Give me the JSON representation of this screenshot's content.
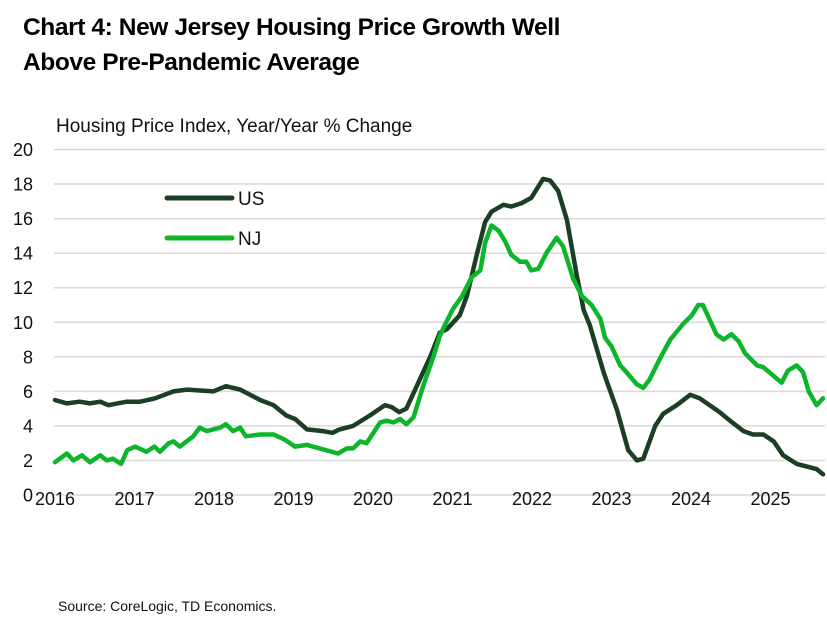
{
  "chart_data": {
    "type": "line",
    "title": [
      "Chart 4: New Jersey Housing Price Growth Well",
      "Above Pre-Pandemic Average"
    ],
    "subtitle": "Housing Price Index, Year/Year % Change",
    "source": "Source: CoreLogic, TD Economics.",
    "xlabel": "",
    "ylabel": "",
    "xlim": [
      2016,
      2025.7
    ],
    "ylim": [
      0,
      20
    ],
    "x_ticks": [
      2016,
      2017,
      2018,
      2019,
      2020,
      2021,
      2022,
      2023,
      2024,
      2025
    ],
    "x_tick_labels": [
      "2016",
      "2017",
      "2018",
      "2019",
      "2020",
      "2021",
      "2022",
      "2023",
      "2024",
      "2025"
    ],
    "y_ticks": [
      0,
      2,
      4,
      6,
      8,
      10,
      12,
      14,
      16,
      18,
      20
    ],
    "y_tick_labels": [
      "0",
      "2",
      "4",
      "6",
      "8",
      "10",
      "12",
      "14",
      "16",
      "18",
      "20"
    ],
    "grid": "horizontal",
    "legend_position": "top-left",
    "series": [
      {
        "name": "US",
        "color": "#1a3f24",
        "points": [
          [
            2016.0,
            5.5
          ],
          [
            2016.15,
            5.3
          ],
          [
            2016.31,
            5.4
          ],
          [
            2016.44,
            5.3
          ],
          [
            2016.57,
            5.4
          ],
          [
            2016.67,
            5.2
          ],
          [
            2016.9,
            5.4
          ],
          [
            2017.07,
            5.4
          ],
          [
            2017.26,
            5.6
          ],
          [
            2017.49,
            6.0
          ],
          [
            2017.66,
            6.1
          ],
          [
            2017.99,
            6.0
          ],
          [
            2018.15,
            6.3
          ],
          [
            2018.33,
            6.1
          ],
          [
            2018.58,
            5.5
          ],
          [
            2018.75,
            5.2
          ],
          [
            2018.91,
            4.6
          ],
          [
            2019.02,
            4.4
          ],
          [
            2019.17,
            3.8
          ],
          [
            2019.37,
            3.7
          ],
          [
            2019.49,
            3.6
          ],
          [
            2019.58,
            3.8
          ],
          [
            2019.75,
            4.0
          ],
          [
            2019.96,
            4.6
          ],
          [
            2020.15,
            5.2
          ],
          [
            2020.23,
            5.1
          ],
          [
            2020.33,
            4.8
          ],
          [
            2020.42,
            5.0
          ],
          [
            2020.55,
            6.3
          ],
          [
            2020.72,
            8.0
          ],
          [
            2020.84,
            9.4
          ],
          [
            2020.93,
            9.6
          ],
          [
            2021.09,
            10.4
          ],
          [
            2021.18,
            11.5
          ],
          [
            2021.3,
            13.8
          ],
          [
            2021.41,
            15.8
          ],
          [
            2021.49,
            16.4
          ],
          [
            2021.64,
            16.8
          ],
          [
            2021.74,
            16.7
          ],
          [
            2021.87,
            16.9
          ],
          [
            2021.99,
            17.2
          ],
          [
            2022.14,
            18.3
          ],
          [
            2022.23,
            18.2
          ],
          [
            2022.33,
            17.6
          ],
          [
            2022.44,
            15.9
          ],
          [
            2022.56,
            12.8
          ],
          [
            2022.65,
            10.7
          ],
          [
            2022.73,
            9.8
          ],
          [
            2022.9,
            7.1
          ],
          [
            2023.07,
            4.9
          ],
          [
            2023.21,
            2.6
          ],
          [
            2023.32,
            2.0
          ],
          [
            2023.4,
            2.1
          ],
          [
            2023.55,
            4.0
          ],
          [
            2023.65,
            4.7
          ],
          [
            2023.82,
            5.2
          ],
          [
            2023.99,
            5.8
          ],
          [
            2024.11,
            5.6
          ],
          [
            2024.36,
            4.8
          ],
          [
            2024.49,
            4.3
          ],
          [
            2024.66,
            3.7
          ],
          [
            2024.78,
            3.5
          ],
          [
            2024.91,
            3.5
          ],
          [
            2025.04,
            3.1
          ],
          [
            2025.16,
            2.3
          ],
          [
            2025.33,
            1.8
          ],
          [
            2025.5,
            1.6
          ],
          [
            2025.58,
            1.5
          ],
          [
            2025.66,
            1.2
          ]
        ]
      },
      {
        "name": "NJ",
        "color": "#0db52b",
        "points": [
          [
            2016.0,
            1.9
          ],
          [
            2016.15,
            2.4
          ],
          [
            2016.23,
            2.0
          ],
          [
            2016.34,
            2.3
          ],
          [
            2016.44,
            1.9
          ],
          [
            2016.57,
            2.3
          ],
          [
            2016.65,
            2.0
          ],
          [
            2016.73,
            2.1
          ],
          [
            2016.83,
            1.8
          ],
          [
            2016.91,
            2.6
          ],
          [
            2017.01,
            2.8
          ],
          [
            2017.15,
            2.5
          ],
          [
            2017.25,
            2.8
          ],
          [
            2017.32,
            2.5
          ],
          [
            2017.43,
            3.0
          ],
          [
            2017.49,
            3.1
          ],
          [
            2017.57,
            2.8
          ],
          [
            2017.74,
            3.4
          ],
          [
            2017.82,
            3.9
          ],
          [
            2017.91,
            3.7
          ],
          [
            2018.08,
            3.9
          ],
          [
            2018.15,
            4.1
          ],
          [
            2018.24,
            3.7
          ],
          [
            2018.33,
            3.9
          ],
          [
            2018.4,
            3.4
          ],
          [
            2018.58,
            3.5
          ],
          [
            2018.75,
            3.5
          ],
          [
            2018.89,
            3.2
          ],
          [
            2019.02,
            2.8
          ],
          [
            2019.17,
            2.9
          ],
          [
            2019.33,
            2.7
          ],
          [
            2019.56,
            2.4
          ],
          [
            2019.67,
            2.7
          ],
          [
            2019.75,
            2.7
          ],
          [
            2019.84,
            3.1
          ],
          [
            2019.92,
            3.0
          ],
          [
            2020.09,
            4.2
          ],
          [
            2020.17,
            4.3
          ],
          [
            2020.26,
            4.2
          ],
          [
            2020.34,
            4.4
          ],
          [
            2020.42,
            4.1
          ],
          [
            2020.51,
            4.5
          ],
          [
            2020.63,
            6.3
          ],
          [
            2020.76,
            8.0
          ],
          [
            2020.84,
            9.2
          ],
          [
            2020.91,
            9.9
          ],
          [
            2021.01,
            10.8
          ],
          [
            2021.12,
            11.5
          ],
          [
            2021.24,
            12.6
          ],
          [
            2021.35,
            13.0
          ],
          [
            2021.41,
            14.6
          ],
          [
            2021.49,
            15.6
          ],
          [
            2021.58,
            15.3
          ],
          [
            2021.66,
            14.7
          ],
          [
            2021.74,
            13.9
          ],
          [
            2021.85,
            13.5
          ],
          [
            2021.93,
            13.5
          ],
          [
            2021.99,
            13.0
          ],
          [
            2022.08,
            13.1
          ],
          [
            2022.18,
            14.0
          ],
          [
            2022.31,
            14.9
          ],
          [
            2022.39,
            14.4
          ],
          [
            2022.52,
            12.5
          ],
          [
            2022.63,
            11.5
          ],
          [
            2022.75,
            11.0
          ],
          [
            2022.86,
            10.2
          ],
          [
            2022.92,
            9.1
          ],
          [
            2023.0,
            8.6
          ],
          [
            2023.11,
            7.5
          ],
          [
            2023.19,
            7.1
          ],
          [
            2023.32,
            6.4
          ],
          [
            2023.4,
            6.2
          ],
          [
            2023.48,
            6.7
          ],
          [
            2023.61,
            7.9
          ],
          [
            2023.74,
            9.0
          ],
          [
            2023.9,
            9.9
          ],
          [
            2024.01,
            10.4
          ],
          [
            2024.09,
            11.0
          ],
          [
            2024.15,
            11.0
          ],
          [
            2024.32,
            9.3
          ],
          [
            2024.41,
            9.0
          ],
          [
            2024.51,
            9.3
          ],
          [
            2024.6,
            8.9
          ],
          [
            2024.68,
            8.2
          ],
          [
            2024.83,
            7.5
          ],
          [
            2024.91,
            7.4
          ],
          [
            2025.14,
            6.5
          ],
          [
            2025.22,
            7.2
          ],
          [
            2025.33,
            7.5
          ],
          [
            2025.41,
            7.1
          ],
          [
            2025.48,
            6.0
          ],
          [
            2025.58,
            5.2
          ],
          [
            2025.66,
            5.6
          ]
        ]
      }
    ]
  }
}
